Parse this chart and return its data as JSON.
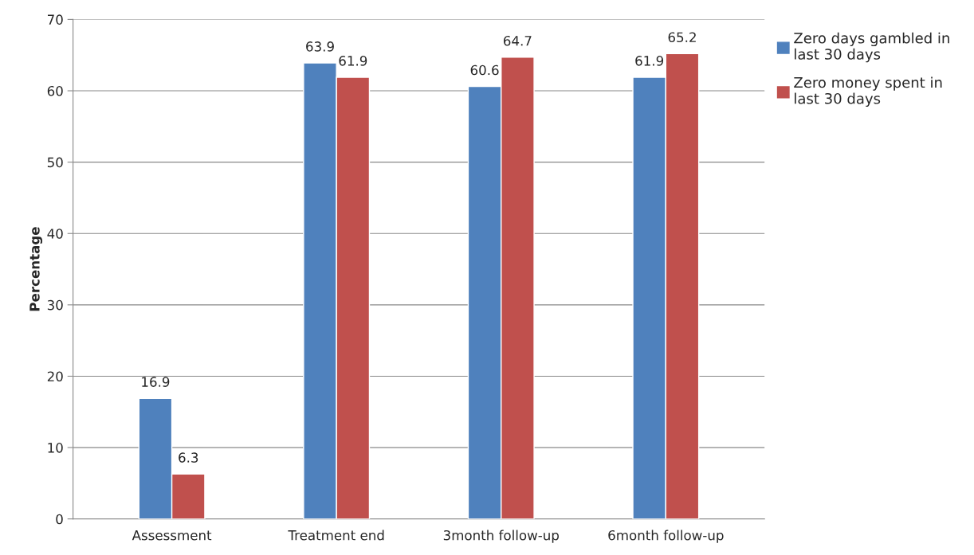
{
  "chart_data": {
    "type": "bar",
    "ylabel": "Percentage",
    "categories": [
      "Assessment",
      "Treatment end",
      "3month follow-up",
      "6month follow-up"
    ],
    "series": [
      {
        "name": "Zero days gambled in last 30 days",
        "color": "#4f81bd",
        "values": [
          16.9,
          63.9,
          60.6,
          61.9
        ]
      },
      {
        "name": "Zero money spent in last 30 days",
        "color": "#c0504d",
        "values": [
          6.3,
          61.9,
          64.7,
          65.2
        ]
      }
    ],
    "ylim": [
      0,
      70
    ],
    "yticks": [
      0,
      10,
      20,
      30,
      40,
      50,
      60,
      70
    ],
    "grid": "y",
    "legend": "right",
    "data_labels": true
  }
}
